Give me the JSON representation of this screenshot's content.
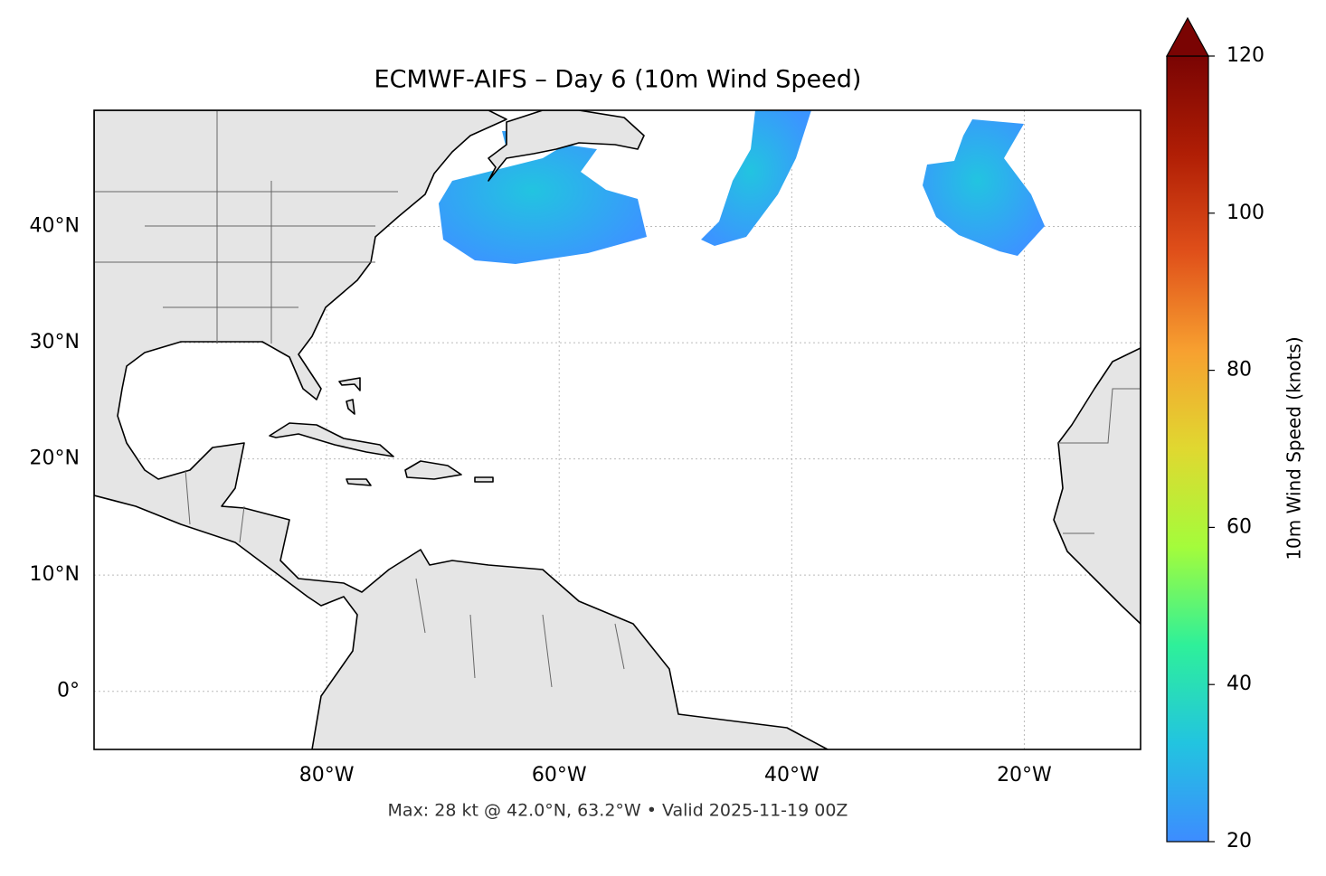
{
  "chart_data": {
    "type": "map",
    "title": "ECMWF-AIFS – Day 6 (10m Wind Speed)",
    "subtitle": "Max: 28 kt @ 42.0°N, 63.2°W • Valid 2025-11-19 00Z",
    "xlim": [
      -100,
      -10
    ],
    "ylim": [
      -5,
      50
    ],
    "xticks": [
      {
        "value": -80,
        "label": "80°W"
      },
      {
        "value": -60,
        "label": "60°W"
      },
      {
        "value": -40,
        "label": "40°W"
      },
      {
        "value": -20,
        "label": "20°W"
      }
    ],
    "yticks": [
      {
        "value": 0,
        "label": "0°"
      },
      {
        "value": 10,
        "label": "10°N"
      },
      {
        "value": 20,
        "label": "20°N"
      },
      {
        "value": 30,
        "label": "30°N"
      },
      {
        "value": 40,
        "label": "40°N"
      }
    ],
    "grid": true,
    "colorbar": {
      "label": "10m Wind Speed (knots)",
      "lim": [
        20,
        120
      ],
      "ticks": [
        20,
        40,
        60,
        80,
        100,
        120
      ],
      "colors": [
        "#3d8cff",
        "#22c4e0",
        "#2ef09a",
        "#a4fc3b",
        "#e0d830",
        "#f7a030",
        "#e0501a",
        "#b01e05",
        "#7a0403"
      ],
      "extend": "max"
    }
  }
}
